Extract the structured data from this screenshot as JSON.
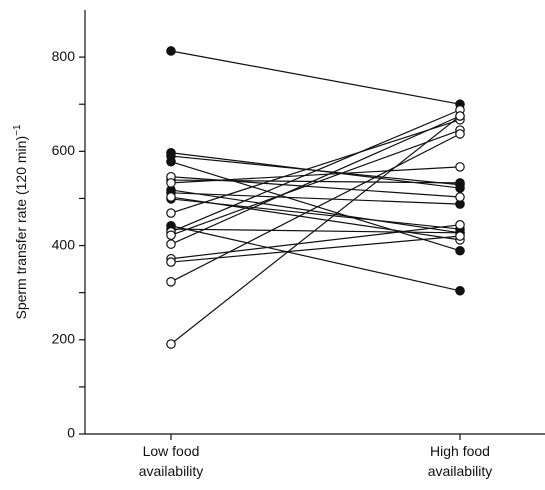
{
  "chart_data": {
    "type": "paired-dot",
    "ylabel": "Sperm transfer rate (120 min)",
    "ylabel_sup": "−1",
    "categories": [
      "Low food\navailability",
      "High food\navailability"
    ],
    "ylim": [
      0,
      900
    ],
    "yticks": [
      0,
      200,
      400,
      600,
      800
    ],
    "yminor": [
      100,
      300,
      500,
      700
    ],
    "color": "#111111",
    "series": [
      {
        "filled": true,
        "values": [
          813,
          700
        ]
      },
      {
        "filled": true,
        "values": [
          597,
          522
        ]
      },
      {
        "filled": true,
        "values": [
          590,
          529
        ]
      },
      {
        "filled": true,
        "values": [
          578,
          389
        ]
      },
      {
        "filled": true,
        "values": [
          539,
          533
        ]
      },
      {
        "filled": true,
        "values": [
          518,
          427
        ]
      },
      {
        "filled": true,
        "values": [
          512,
          488
        ]
      },
      {
        "filled": true,
        "values": [
          499,
          435
        ]
      },
      {
        "filled": true,
        "values": [
          442,
          304
        ]
      },
      {
        "filled": true,
        "values": [
          435,
          427
        ]
      },
      {
        "filled": false,
        "values": [
          546,
          503
        ]
      },
      {
        "filled": false,
        "values": [
          533,
          567
        ]
      },
      {
        "filled": false,
        "values": [
          503,
          412
        ]
      },
      {
        "filled": false,
        "values": [
          469,
          667
        ]
      },
      {
        "filled": false,
        "values": [
          429,
          688
        ]
      },
      {
        "filled": false,
        "values": [
          422,
          645
        ]
      },
      {
        "filled": false,
        "values": [
          403,
          675
        ]
      },
      {
        "filled": false,
        "values": [
          372,
          444
        ]
      },
      {
        "filled": false,
        "values": [
          365,
          420
        ]
      },
      {
        "filled": false,
        "values": [
          323,
          637
        ]
      },
      {
        "filled": false,
        "values": [
          191,
          675
        ]
      }
    ]
  }
}
